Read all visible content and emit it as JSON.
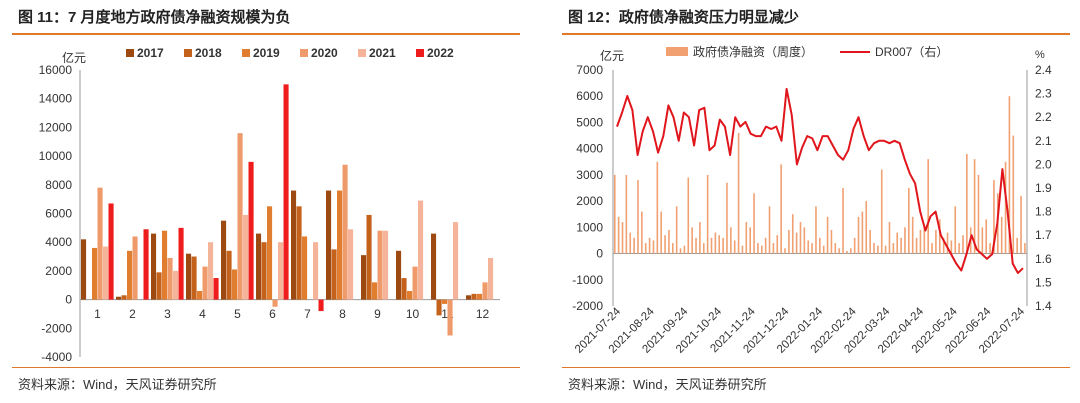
{
  "left": {
    "title": "图 11：7 月度地方政府债净融资规模为负",
    "source": "资料来源：Wind，天风证券研究所",
    "chart_data": {
      "type": "bar",
      "ylabel": "亿元",
      "ylim": [
        -4000,
        16000
      ],
      "yticks": [
        -4000,
        -2000,
        0,
        2000,
        4000,
        6000,
        8000,
        10000,
        12000,
        14000,
        16000
      ],
      "categories": [
        "1",
        "2",
        "3",
        "4",
        "5",
        "6",
        "7",
        "8",
        "9",
        "10",
        "11",
        "12"
      ],
      "legend_position": "top",
      "series": [
        {
          "name": "2017",
          "color": "#9c4a12",
          "values": [
            4200,
            200,
            4600,
            3200,
            5500,
            4600,
            7600,
            7600,
            3100,
            3400,
            4600,
            300
          ]
        },
        {
          "name": "2018",
          "color": "#c4621b",
          "values": [
            null,
            300,
            1900,
            3000,
            3400,
            4000,
            6500,
            3500,
            5900,
            1500,
            -1100,
            400
          ]
        },
        {
          "name": "2019",
          "color": "#e07d2e",
          "values": [
            3600,
            3400,
            4800,
            600,
            2100,
            6500,
            4400,
            7600,
            1200,
            600,
            -300,
            400
          ]
        },
        {
          "name": "2020",
          "color": "#ef9a6a",
          "values": [
            7800,
            4400,
            2900,
            2300,
            11600,
            -500,
            null,
            9400,
            4800,
            2300,
            -2500,
            1200
          ]
        },
        {
          "name": "2021",
          "color": "#f5b49a",
          "values": [
            3700,
            null,
            2000,
            4000,
            5900,
            4000,
            4000,
            4900,
            4800,
            6900,
            5400,
            2900
          ]
        },
        {
          "name": "2022",
          "color": "#ee1c1c",
          "values": [
            6700,
            4900,
            5000,
            1500,
            9600,
            15000,
            -800,
            null,
            null,
            null,
            null,
            null
          ]
        }
      ]
    }
  },
  "right": {
    "title": "图 12：政府债净融资压力明显减少",
    "source": "资料来源：Wind，天风证券研究所",
    "chart_data": {
      "type": "bar+line",
      "ylabel_left": "亿元",
      "ylabel_right": "%",
      "ylim_left": [
        -2000,
        7000
      ],
      "ylim_right": [
        1.4,
        2.4
      ],
      "yticks_left": [
        -2000,
        -1000,
        0,
        1000,
        2000,
        3000,
        4000,
        5000,
        6000,
        7000
      ],
      "yticks_right": [
        1.4,
        1.5,
        1.6,
        1.7,
        1.8,
        1.9,
        2.0,
        2.1,
        2.2,
        2.3,
        2.4
      ],
      "x_tick_labels": [
        "2021-07-24",
        "2021-08-24",
        "2021-09-24",
        "2021-10-24",
        "2021-11-24",
        "2021-12-24",
        "2022-01-24",
        "2022-02-24",
        "2022-03-24",
        "2022-04-24",
        "2022-05-24",
        "2022-06-24",
        "2022-07-24"
      ],
      "legend_position": "top",
      "bar_series": {
        "name": "政府债净融资（周度）",
        "color": "#f0a071",
        "values": [
          3000,
          1400,
          1200,
          3000,
          800,
          600,
          2800,
          1600,
          400,
          600,
          500,
          3500,
          1600,
          700,
          900,
          400,
          1800,
          200,
          300,
          2900,
          1000,
          600,
          1200,
          400,
          3000,
          600,
          800,
          700,
          600,
          2700,
          1000,
          500,
          4600,
          300,
          1200,
          1000,
          2300,
          400,
          300,
          600,
          1800,
          400,
          700,
          3400,
          200,
          900,
          1500,
          800,
          1200,
          1000,
          500,
          400,
          1800,
          600,
          300,
          1400,
          900,
          400,
          200,
          2500,
          100,
          200,
          600,
          1400,
          1600,
          2000,
          900,
          400,
          300,
          3200,
          300,
          1200,
          400,
          800,
          600,
          1000,
          2500,
          1400,
          600,
          900,
          1100,
          3600,
          400,
          900,
          1300,
          600,
          800,
          500,
          1800,
          400,
          700,
          3800,
          1000,
          3600,
          3000,
          1000,
          1300,
          400,
          2800,
          2300,
          1400,
          3500,
          6000,
          4500,
          600,
          2200,
          400
        ]
      },
      "line_series": {
        "name": "DR007（右）",
        "color": "#e0161c",
        "values": [
          2.16,
          2.22,
          2.29,
          2.23,
          2.04,
          2.14,
          2.2,
          2.14,
          2.05,
          2.12,
          2.25,
          2.2,
          2.1,
          2.22,
          2.2,
          2.08,
          2.23,
          2.24,
          2.06,
          2.08,
          2.19,
          2.16,
          2.04,
          2.2,
          2.16,
          2.18,
          2.13,
          2.12,
          2.12,
          2.16,
          2.15,
          2.16,
          2.1,
          2.32,
          2.21,
          2.0,
          2.07,
          2.12,
          2.11,
          2.06,
          2.12,
          2.12,
          2.08,
          2.04,
          2.02,
          2.06,
          2.15,
          2.2,
          2.12,
          2.06,
          2.09,
          2.1,
          2.1,
          2.09,
          2.1,
          2.09,
          2.02,
          1.96,
          1.92,
          1.8,
          1.72,
          1.78,
          1.8,
          1.7,
          1.66,
          1.62,
          1.58,
          1.55,
          1.62,
          1.7,
          1.64,
          1.62,
          1.6,
          1.62,
          1.75,
          1.98,
          1.8,
          1.58,
          1.54,
          1.56
        ]
      }
    }
  }
}
